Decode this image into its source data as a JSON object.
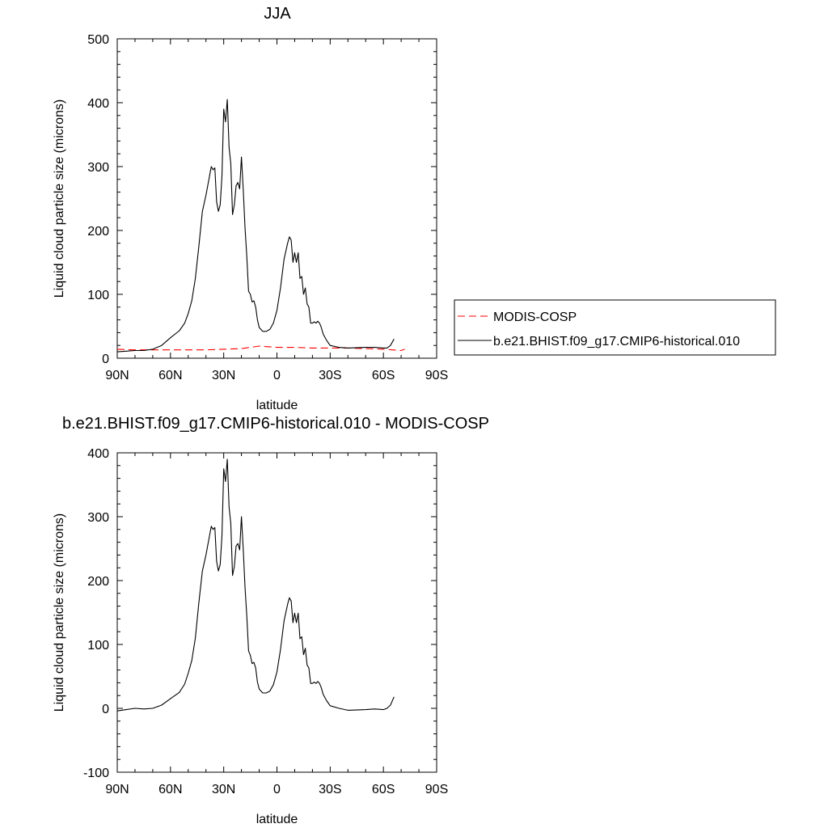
{
  "chart_data": [
    {
      "type": "line",
      "title": "JJA",
      "xlabel": "latitude",
      "ylabel": "Liquid cloud particle size (microns)",
      "xlim": [
        -90,
        90
      ],
      "ylim": [
        0,
        500
      ],
      "x_ticks": [
        {
          "value": -90,
          "label": "90N"
        },
        {
          "value": -60,
          "label": "60N"
        },
        {
          "value": -30,
          "label": "30N"
        },
        {
          "value": 0,
          "label": "0"
        },
        {
          "value": 30,
          "label": "30S"
        },
        {
          "value": 60,
          "label": "60S"
        },
        {
          "value": 90,
          "label": "90S"
        }
      ],
      "y_ticks": [
        0,
        100,
        200,
        300,
        400,
        500
      ],
      "legend_position": "right",
      "series": [
        {
          "name": "MODIS-COSP",
          "color": "#ff0000",
          "dash": "dashed",
          "x": [
            -90,
            -80,
            -70,
            -60,
            -50,
            -40,
            -30,
            -20,
            -15,
            -10,
            -5,
            0,
            10,
            20,
            30,
            40,
            50,
            60,
            65,
            70,
            72
          ],
          "values": [
            14,
            13,
            13,
            13,
            13,
            13,
            14,
            15,
            17,
            19,
            18,
            17,
            17,
            16,
            16,
            16,
            15,
            14,
            13,
            12,
            14
          ]
        },
        {
          "name": "b.e21.BHIST.f09_g17.CMIP6-historical.010",
          "color": "#000000",
          "dash": "solid",
          "x": [
            -90,
            -85,
            -80,
            -75,
            -70,
            -65,
            -60,
            -55,
            -52,
            -50,
            -48,
            -46,
            -44,
            -42,
            -40,
            -39,
            -38,
            -37,
            -36,
            -35,
            -34,
            -33,
            -32,
            -31,
            -30,
            -29,
            -28,
            -27,
            -26,
            -25,
            -24,
            -23,
            -22,
            -21,
            -20,
            -19,
            -18,
            -17,
            -16,
            -15,
            -14,
            -13,
            -12,
            -11,
            -10,
            -8,
            -6,
            -4,
            -2,
            0,
            2,
            4,
            6,
            7,
            8,
            9,
            10,
            11,
            12,
            13,
            14,
            15,
            16,
            17,
            18,
            19,
            20,
            21,
            22,
            23,
            24,
            25,
            26,
            28,
            30,
            35,
            40,
            50,
            55,
            60,
            62,
            64,
            66
          ],
          "values": [
            10,
            11,
            12,
            12,
            14,
            20,
            32,
            43,
            55,
            70,
            90,
            125,
            175,
            230,
            255,
            270,
            285,
            300,
            295,
            298,
            245,
            230,
            240,
            285,
            390,
            370,
            405,
            330,
            305,
            225,
            240,
            270,
            275,
            265,
            315,
            265,
            205,
            160,
            105,
            100,
            88,
            90,
            80,
            60,
            48,
            42,
            42,
            45,
            55,
            75,
            110,
            155,
            180,
            190,
            185,
            150,
            165,
            150,
            165,
            125,
            128,
            100,
            110,
            85,
            80,
            55,
            55,
            57,
            55,
            58,
            55,
            48,
            38,
            28,
            20,
            17,
            16,
            17,
            17,
            16,
            16,
            20,
            30
          ]
        }
      ]
    },
    {
      "type": "line",
      "title": "b.e21.BHIST.f09_g17.CMIP6-historical.010 - MODIS-COSP",
      "xlabel": "latitude",
      "ylabel": "Liquid cloud particle size (microns)",
      "xlim": [
        -90,
        90
      ],
      "ylim": [
        -100,
        400
      ],
      "x_ticks": [
        {
          "value": -90,
          "label": "90N"
        },
        {
          "value": -60,
          "label": "60N"
        },
        {
          "value": -30,
          "label": "30N"
        },
        {
          "value": 0,
          "label": "0"
        },
        {
          "value": 30,
          "label": "30S"
        },
        {
          "value": 60,
          "label": "60S"
        },
        {
          "value": 90,
          "label": "90S"
        }
      ],
      "y_ticks": [
        -100,
        0,
        100,
        200,
        300,
        400
      ],
      "series": [
        {
          "color": "#000000",
          "dash": "solid",
          "x": [
            -90,
            -85,
            -80,
            -75,
            -70,
            -65,
            -60,
            -55,
            -52,
            -50,
            -48,
            -46,
            -44,
            -42,
            -40,
            -39,
            -38,
            -37,
            -36,
            -35,
            -34,
            -33,
            -32,
            -31,
            -30,
            -29,
            -28,
            -27,
            -26,
            -25,
            -24,
            -23,
            -22,
            -21,
            -20,
            -19,
            -18,
            -17,
            -16,
            -15,
            -14,
            -13,
            -12,
            -11,
            -10,
            -8,
            -6,
            -4,
            -2,
            0,
            2,
            4,
            6,
            7,
            8,
            9,
            10,
            11,
            12,
            13,
            14,
            15,
            16,
            17,
            18,
            19,
            20,
            21,
            22,
            23,
            24,
            25,
            26,
            28,
            30,
            35,
            40,
            50,
            55,
            60,
            62,
            64,
            66
          ],
          "values": [
            -4,
            -2,
            0,
            -1,
            0,
            5,
            15,
            25,
            38,
            55,
            75,
            110,
            165,
            215,
            240,
            255,
            270,
            285,
            280,
            283,
            230,
            215,
            225,
            270,
            375,
            355,
            390,
            315,
            290,
            208,
            222,
            254,
            258,
            248,
            300,
            250,
            190,
            145,
            90,
            83,
            70,
            72,
            63,
            41,
            30,
            24,
            24,
            27,
            37,
            57,
            92,
            137,
            163,
            173,
            168,
            134,
            149,
            134,
            149,
            109,
            112,
            84,
            94,
            68,
            63,
            39,
            39,
            41,
            39,
            42,
            39,
            32,
            22,
            12,
            4,
            0,
            -3,
            -2,
            -1,
            -2,
            0,
            5,
            18
          ]
        }
      ]
    }
  ]
}
